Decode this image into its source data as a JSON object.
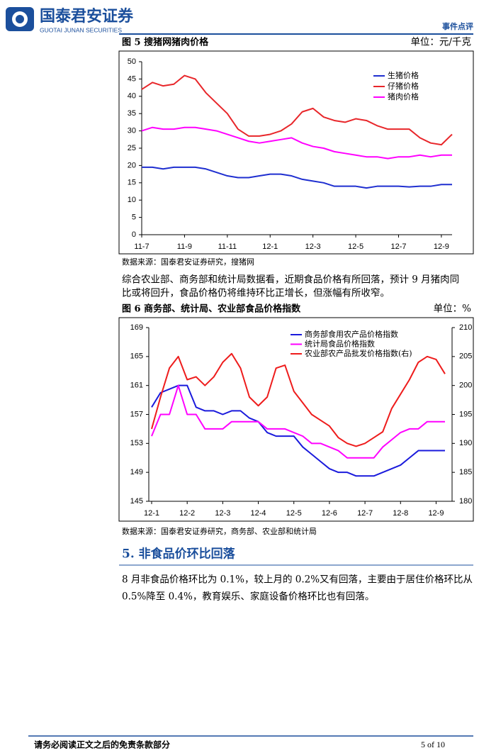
{
  "header": {
    "company": "国泰君安证券",
    "company_en": "GUOTAI JUNAN SECURITIES",
    "report_type": "事件点评"
  },
  "chart_data": [
    {
      "type": "line",
      "title": "图 5 搜猪网猪肉价格",
      "unit": "单位：元/千克",
      "source": "数据来源：国泰君安证券研究，搜猪网",
      "categories": [
        "11-7",
        null,
        null,
        null,
        "11-9",
        null,
        null,
        null,
        "11-11",
        null,
        null,
        null,
        "12-1",
        null,
        null,
        null,
        "12-3",
        null,
        null,
        null,
        "12-5",
        null,
        null,
        null,
        "12-7",
        null,
        null,
        null,
        "12-9",
        null
      ],
      "series": [
        {
          "name": "生猪价格",
          "color": "#1f2fd0",
          "values": [
            19.5,
            19.5,
            19,
            19.5,
            19.5,
            19.5,
            19,
            18,
            17,
            16.5,
            16.5,
            17,
            17.5,
            17.5,
            17,
            16,
            15.5,
            15,
            14,
            14,
            14,
            13.5,
            14,
            14,
            14,
            13.8,
            14,
            14,
            14.5,
            14.5
          ]
        },
        {
          "name": "仔猪价格",
          "color": "#e8262a",
          "values": [
            42,
            44,
            43,
            43.5,
            46,
            45,
            41,
            38,
            35,
            30.5,
            28.5,
            28.5,
            29,
            30,
            32,
            35.5,
            36.5,
            34,
            33,
            32.5,
            33.5,
            33,
            31.5,
            30.5,
            30.5,
            30.5,
            28,
            26.5,
            26,
            29
          ]
        },
        {
          "name": "猪肉价格",
          "color": "#ff00ff",
          "values": [
            30,
            31,
            30.5,
            30.5,
            31,
            31,
            30.5,
            30,
            29,
            28,
            27,
            26.5,
            27,
            27.5,
            28,
            26.5,
            25.5,
            25,
            24,
            23.5,
            23,
            22.5,
            22.5,
            22,
            22.5,
            22.5,
            23,
            22.5,
            23,
            23
          ]
        }
      ],
      "ylim": [
        0,
        50
      ],
      "yticks": [
        0,
        5,
        10,
        15,
        20,
        25,
        30,
        35,
        40,
        45,
        50
      ],
      "grid": false
    },
    {
      "type": "line",
      "title": "图 6 商务部、统计局、农业部食品价格指数",
      "unit": "单位：%",
      "source": "数据来源：国泰君安证券研究，商务部、农业部和统计局",
      "categories": [
        "12-1",
        null,
        null,
        null,
        "12-2",
        null,
        null,
        null,
        "12-3",
        null,
        null,
        null,
        "12-4",
        null,
        null,
        null,
        "12-5",
        null,
        null,
        null,
        "12-6",
        null,
        null,
        null,
        "12-7",
        null,
        null,
        null,
        "12-8",
        null,
        null,
        null,
        "12-9",
        null
      ],
      "series": [
        {
          "name": "商务部食用农产品价格指数",
          "color": "#1a1adc",
          "values": [
            158,
            160,
            160.5,
            161,
            161,
            158,
            157.5,
            157.5,
            157,
            157.5,
            157.5,
            156.5,
            156,
            154.5,
            154,
            154,
            154,
            152.5,
            151.5,
            150.5,
            149.5,
            149,
            149,
            148.5,
            148.5,
            148.5,
            149,
            149.5,
            150,
            151,
            152,
            152,
            152,
            152
          ]
        },
        {
          "name": "统计局食品价格指数",
          "color": "#ff00ff",
          "values": [
            154,
            157,
            157,
            161,
            157,
            157,
            155,
            155,
            155,
            156,
            156,
            156,
            156,
            155,
            155,
            155,
            154.5,
            154,
            153,
            153,
            152.5,
            152,
            151,
            151,
            151,
            151,
            152.5,
            153.5,
            154.5,
            155,
            155,
            156,
            156,
            156
          ]
        },
        {
          "name": "农业部农产品批发价格指数(右)",
          "color": "#ee1c1c",
          "axis": "y2",
          "values": [
            192.5,
            198,
            203,
            205,
            201,
            201.5,
            200,
            201.5,
            204,
            205.5,
            203,
            198,
            196.5,
            198,
            203,
            203.5,
            199,
            197,
            195,
            194,
            193,
            191,
            190,
            189.5,
            190,
            191,
            192,
            196,
            198.5,
            201,
            204,
            205,
            204.5,
            202
          ]
        }
      ],
      "ylim": [
        145,
        169
      ],
      "yticks": [
        145,
        149,
        153,
        157,
        161,
        165,
        169
      ],
      "y2lim": [
        180,
        210
      ],
      "y2ticks": [
        180,
        185,
        190,
        195,
        200,
        205,
        210
      ],
      "grid": false
    }
  ],
  "paragraph": [
    "综合农业部、商务部和统计局数据看，近期食品价格有所回落，预计 9 月猪肉同",
    "比或将回升，食品价格仍将维持环比正增长，但涨幅有所收窄。"
  ],
  "section": {
    "heading": "5.  非食品价环比回落",
    "body": [
      "8 月非食品价格环比为 0.1%，较上月的 0.2%又有回落，主要由于居住价格环比从",
      "0.5%降至 0.4%，教育娱乐、家庭设备价格环比也有回落。"
    ]
  },
  "footer": {
    "disclaimer": "请务必阅读正文之后的免责条款部分",
    "page": "5 of 10"
  }
}
